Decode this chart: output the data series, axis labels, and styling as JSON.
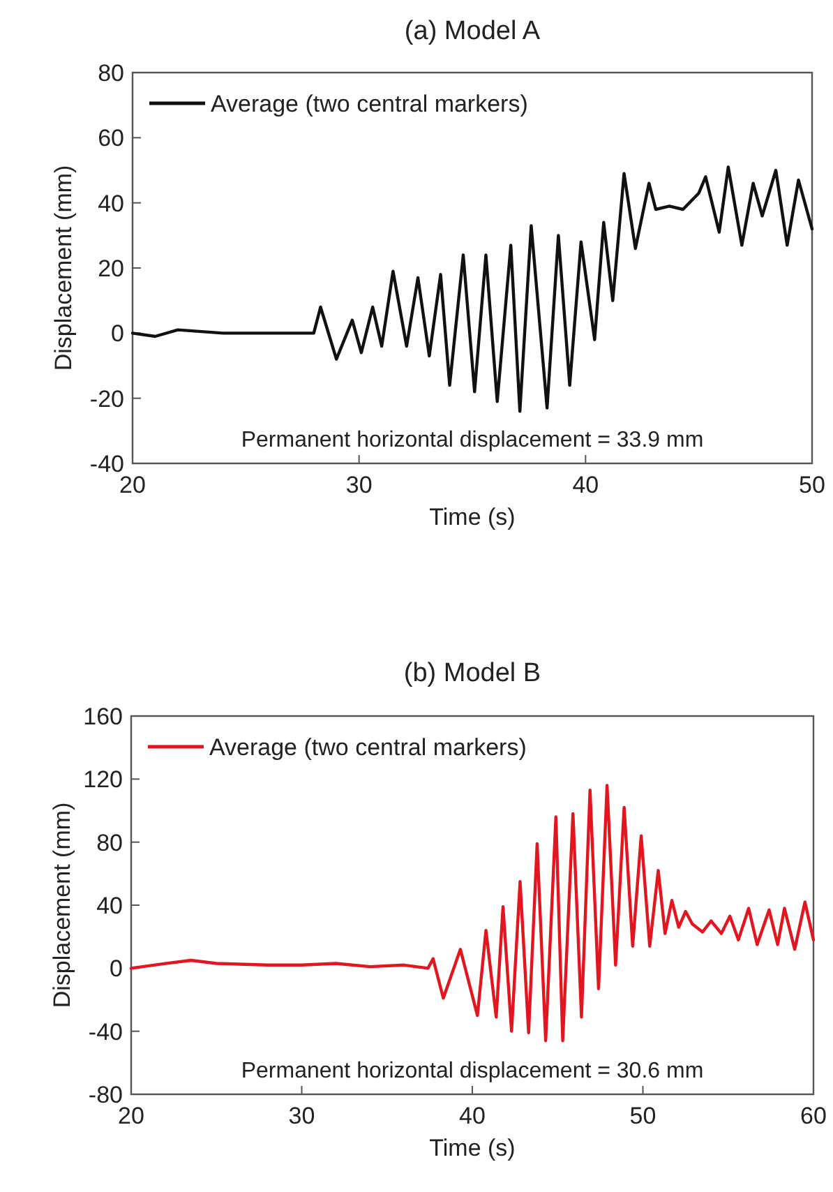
{
  "chart_data": [
    {
      "type": "line",
      "title": "(a)  Model A",
      "xlabel": "Time (s)",
      "ylabel": "Displacement (mm)",
      "xlim": [
        20,
        50
      ],
      "xticks": [
        20,
        30,
        40,
        50
      ],
      "ylim": [
        -40,
        80
      ],
      "yticks": [
        -40,
        -20,
        0,
        20,
        40,
        60,
        80
      ],
      "grid": false,
      "legend": "top left",
      "annotations": [
        "Permanent horizontal displacement = 33.9 mm"
      ],
      "series": [
        {
          "name": "Average (two central markers)",
          "color": "#111111",
          "x": [
            20,
            21,
            22,
            24,
            26,
            28,
            28.3,
            29.0,
            29.7,
            30.1,
            30.6,
            31.0,
            31.5,
            32.1,
            32.6,
            33.1,
            33.6,
            34.0,
            34.6,
            35.1,
            35.6,
            36.1,
            36.7,
            37.1,
            37.6,
            38.3,
            38.8,
            39.3,
            39.8,
            40.4,
            40.8,
            41.2,
            41.7,
            42.2,
            42.8,
            43.1,
            43.7,
            44.3,
            45.0,
            45.3,
            45.9,
            46.3,
            46.9,
            47.4,
            47.8,
            48.4,
            48.9,
            49.4,
            50
          ],
          "values": [
            0,
            -1,
            1,
            0,
            0,
            0,
            8,
            -8,
            4,
            -6,
            8,
            -4,
            19,
            -4,
            17,
            -7,
            18,
            -16,
            24,
            -18,
            24,
            -21,
            27,
            -24,
            33,
            -23,
            30,
            -16,
            28,
            -2,
            34,
            10,
            49,
            26,
            46,
            38,
            39,
            38,
            43,
            48,
            31,
            51,
            27,
            46,
            36,
            50,
            27,
            47,
            32
          ]
        }
      ]
    },
    {
      "type": "line",
      "title": "(b)  Model B",
      "xlabel": "Time (s)",
      "ylabel": "Displacement (mm)",
      "xlim": [
        20,
        60
      ],
      "xticks": [
        20,
        30,
        40,
        50,
        60
      ],
      "ylim": [
        -80,
        160
      ],
      "yticks": [
        -80,
        -40,
        0,
        40,
        80,
        120,
        160
      ],
      "grid": false,
      "legend": "top left",
      "annotations": [
        "Permanent horizontal displacement = 30.6 mm"
      ],
      "series": [
        {
          "name": "Average (two central markers)",
          "color": "#e3161f",
          "x": [
            20,
            22,
            23.5,
            25,
            28,
            30,
            32,
            34,
            36,
            37.4,
            37.7,
            38.3,
            39.3,
            40.3,
            40.8,
            41.4,
            41.8,
            42.3,
            42.8,
            43.3,
            43.8,
            44.3,
            44.9,
            45.3,
            45.9,
            46.4,
            46.9,
            47.4,
            47.9,
            48.4,
            48.9,
            49.4,
            49.9,
            50.4,
            50.9,
            51.3,
            51.7,
            52.1,
            52.5,
            52.9,
            53.5,
            54.0,
            54.6,
            55.1,
            55.6,
            56.2,
            56.7,
            57.4,
            57.9,
            58.3,
            58.9,
            59.5,
            60
          ],
          "values": [
            0,
            3,
            5,
            3,
            2,
            2,
            3,
            1,
            2,
            0,
            6,
            -19,
            12,
            -30,
            24,
            -31,
            39,
            -40,
            55,
            -41,
            79,
            -46,
            96,
            -46,
            98,
            -31,
            113,
            -13,
            116,
            2,
            102,
            14,
            84,
            14,
            62,
            22,
            43,
            26,
            36,
            28,
            23,
            30,
            22,
            33,
            18,
            38,
            15,
            37,
            15,
            38,
            12,
            42,
            18
          ]
        }
      ]
    }
  ]
}
